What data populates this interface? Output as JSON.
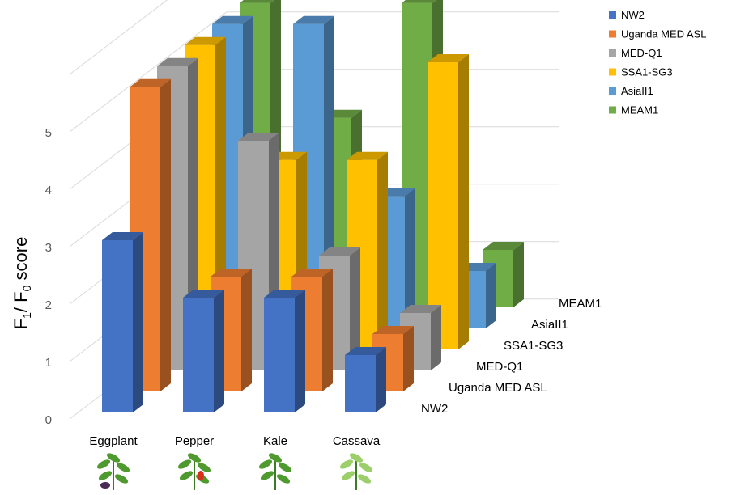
{
  "chart_data": {
    "type": "bar",
    "subtype": "3d-clustered-columns",
    "categories": [
      "Eggplant",
      "Pepper",
      "Kale",
      "Cassava"
    ],
    "series": [
      {
        "name": "NW2",
        "color": "#4472C4",
        "values": [
          3.0,
          2.0,
          2.0,
          1.0
        ]
      },
      {
        "name": "Uganda MED ASL",
        "color": "#ED7D31",
        "values": [
          5.3,
          2.0,
          2.0,
          1.0
        ]
      },
      {
        "name": "MED-Q1",
        "color": "#A5A5A5",
        "values": [
          5.3,
          4.0,
          2.0,
          1.0
        ]
      },
      {
        "name": "SSA1-SG3",
        "color": "#FFC000",
        "values": [
          5.3,
          3.3,
          3.3,
          5.0
        ]
      },
      {
        "name": "AsiaII1",
        "color": "#5B9BD5",
        "values": [
          5.3,
          5.3,
          2.3,
          1.0
        ]
      },
      {
        "name": "MEAM1",
        "color": "#70AD47",
        "values": [
          5.3,
          3.3,
          5.3,
          1.0
        ]
      }
    ],
    "ylabel": {
      "main": "F",
      "sub1": "1",
      "mid": "/ F",
      "sub0": "0",
      "rest": " score"
    },
    "yticks": [
      "0",
      "1",
      "2",
      "3",
      "4",
      "5"
    ],
    "ylim": [
      0,
      6
    ],
    "grid": true,
    "legend_position": "top-right"
  }
}
